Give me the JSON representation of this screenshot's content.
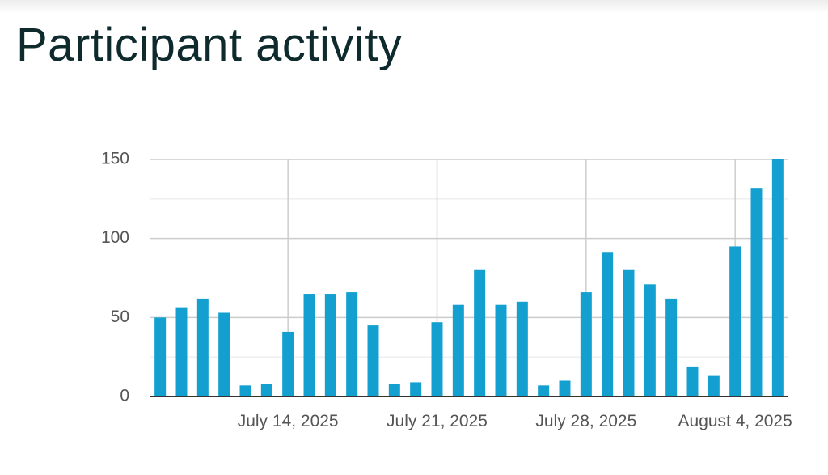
{
  "chart_data": {
    "type": "bar",
    "title": "Participant activity",
    "categories": [
      null,
      null,
      null,
      null,
      null,
      null,
      "July 14, 2025",
      null,
      null,
      null,
      null,
      null,
      null,
      "July 21, 2025",
      null,
      null,
      null,
      null,
      null,
      null,
      "July 28, 2025",
      null,
      null,
      null,
      null,
      null,
      null,
      "August 4, 2025",
      null,
      null
    ],
    "values": [
      50,
      56,
      62,
      53,
      7,
      8,
      41,
      65,
      65,
      66,
      45,
      8,
      9,
      47,
      58,
      80,
      58,
      60,
      7,
      10,
      66,
      91,
      80,
      71,
      62,
      19,
      13,
      95,
      132,
      150
    ],
    "color": "#13a0d0",
    "ylim": [
      0,
      150
    ],
    "yticks": [
      0,
      50,
      100,
      150
    ],
    "grid": true,
    "minor_grid": true
  }
}
